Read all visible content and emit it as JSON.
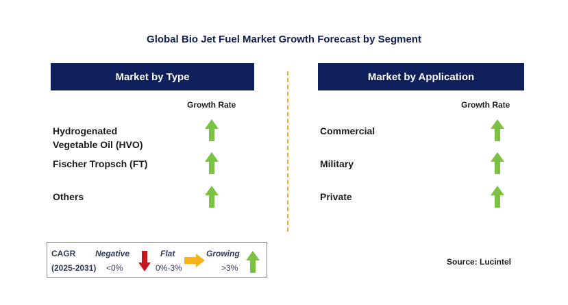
{
  "title": "Global Bio Jet Fuel Market Growth Forecast by Segment",
  "left_panel": {
    "header": "Market by Type",
    "growth_rate_label": "Growth Rate",
    "rows": [
      {
        "label_line1": "Hydrogenated",
        "label_line2": "Vegetable Oil (HVO)",
        "trend": "growing"
      },
      {
        "label": "Fischer Tropsch (FT)",
        "trend": "growing"
      },
      {
        "label": "Others",
        "trend": "growing"
      }
    ]
  },
  "right_panel": {
    "header": "Market by Application",
    "growth_rate_label": "Growth Rate",
    "rows": [
      {
        "label": "Commercial",
        "trend": "growing"
      },
      {
        "label": "Military",
        "trend": "growing"
      },
      {
        "label": "Private",
        "trend": "growing"
      }
    ]
  },
  "legend": {
    "cagr_label": "CAGR",
    "period": "(2025-2031)",
    "negative_label": "Negative",
    "negative_range": "<0%",
    "flat_label": "Flat",
    "flat_range": "0%-3%",
    "growing_label": "Growing",
    "growing_range": ">3%"
  },
  "source": "Source: Lucintel",
  "colors": {
    "header_bg": "#0e1f5b",
    "growing_arrow": "#7cc242",
    "negative_arrow": "#c4171d",
    "flat_arrow": "#f6b21a",
    "divider": "#f2a72b"
  },
  "icons": {
    "growing": "arrow-up-icon",
    "negative": "arrow-down-icon",
    "flat": "arrow-right-icon"
  }
}
